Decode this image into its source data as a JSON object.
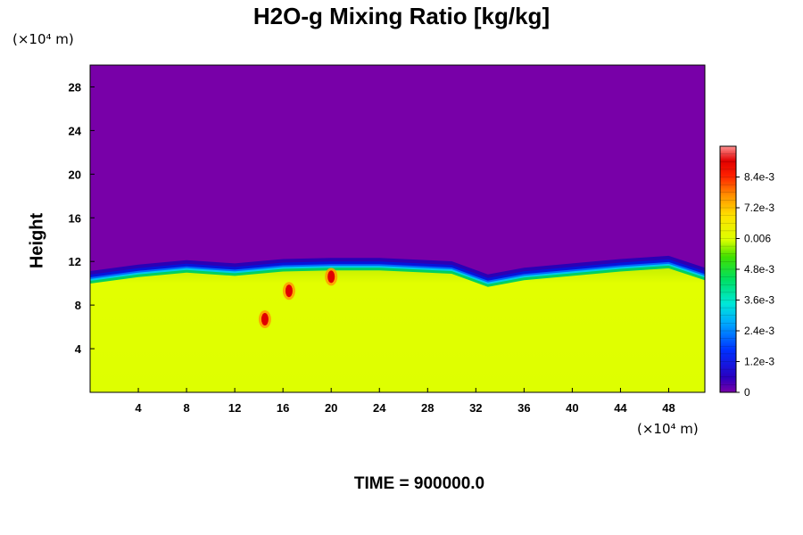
{
  "chart_data": {
    "type": "heatmap",
    "title": "H2O-g Mixing Ratio [kg/kg]",
    "ylabel": "Height",
    "xlabel": "",
    "x_unit": "(×10⁴ m)",
    "y_unit": "(×10⁴ m)",
    "annotation": "TIME = 900000.0",
    "xlim": [
      0,
      51
    ],
    "ylim": [
      0,
      30
    ],
    "x_ticks": [
      "4",
      "8",
      "12",
      "16",
      "20",
      "24",
      "28",
      "32",
      "36",
      "40",
      "44",
      "48"
    ],
    "y_ticks": [
      "4",
      "8",
      "12",
      "16",
      "20",
      "24",
      "28"
    ],
    "colorbar": {
      "range": [
        0,
        0.0096
      ],
      "tick_labels": [
        "0",
        "1.2e-3",
        "2.4e-3",
        "3.6e-3",
        "4.8e-3",
        "0.006",
        "7.2e-3",
        "8.4e-3"
      ]
    },
    "field_description_values": {
      "upper_region_value": 0,
      "lower_region_value": 0.0058,
      "interface_height_profile": [
        [
          0,
          10.3
        ],
        [
          4,
          10.9
        ],
        [
          8,
          11.3
        ],
        [
          12,
          11.0
        ],
        [
          16,
          11.4
        ],
        [
          20,
          11.5
        ],
        [
          24,
          11.5
        ],
        [
          28,
          11.3
        ],
        [
          30,
          11.2
        ],
        [
          33,
          10.0
        ],
        [
          36,
          10.6
        ],
        [
          40,
          11.0
        ],
        [
          44,
          11.4
        ],
        [
          48,
          11.7
        ],
        [
          51,
          10.6
        ]
      ],
      "high_value_patches": [
        {
          "x": 16.5,
          "y": 9.3,
          "value": 0.009
        },
        {
          "x": 20.0,
          "y": 10.6,
          "value": 0.009
        },
        {
          "x": 14.5,
          "y": 6.7,
          "value": 0.009
        }
      ]
    },
    "grid": false,
    "legend": "colorbar-right"
  }
}
